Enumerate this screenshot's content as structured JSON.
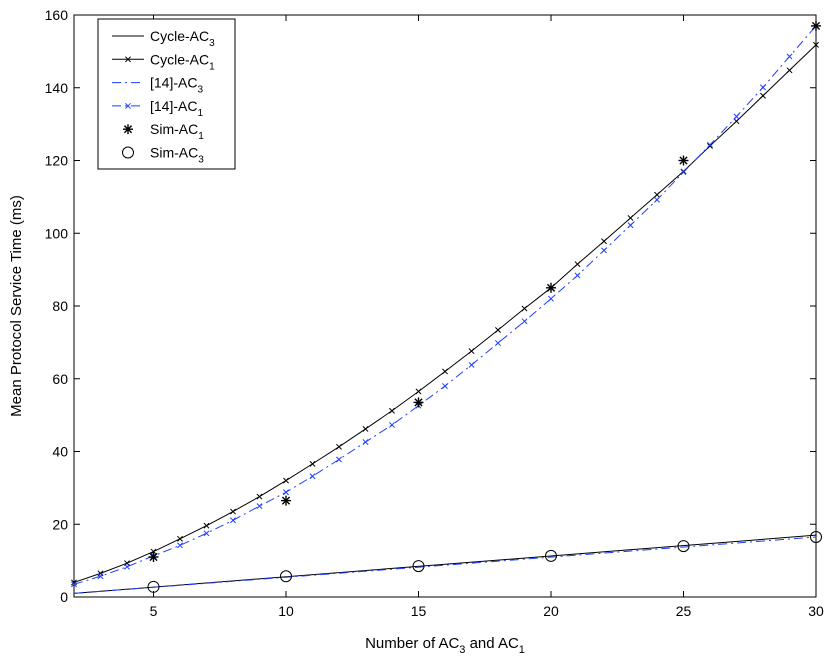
{
  "chart_data": {
    "type": "line",
    "xlabel": {
      "main": "Number of AC",
      "sub1": "3",
      "mid": " and AC",
      "sub2": "1"
    },
    "ylabel": "Mean Protocol Service Time (ms)",
    "xlim": [
      2,
      30
    ],
    "ylim": [
      0,
      160
    ],
    "xticks": [
      5,
      10,
      15,
      20,
      25,
      30
    ],
    "yticks": [
      0,
      20,
      40,
      60,
      80,
      100,
      120,
      140,
      160
    ],
    "grid": false,
    "legend_position": "top-left",
    "series": [
      {
        "name": "Cycle-AC",
        "sub": "3",
        "style": "solid",
        "color": "#000000",
        "marker": "none",
        "x": [
          2,
          30
        ],
        "values": [
          1.0,
          17.0
        ]
      },
      {
        "name": "Cycle-AC",
        "sub": "1",
        "style": "solid",
        "color": "#000000",
        "marker": "x",
        "x": [
          2,
          3,
          4,
          5,
          6,
          7,
          8,
          9,
          10,
          11,
          12,
          13,
          14,
          15,
          16,
          17,
          18,
          19,
          20,
          21,
          22,
          23,
          24,
          25,
          26,
          27,
          28,
          29,
          30
        ],
        "values": [
          4,
          6.5,
          9.3,
          12.5,
          16,
          19.6,
          23.5,
          27.6,
          32,
          36.6,
          41.3,
          46.2,
          51.2,
          56.5,
          62,
          67.6,
          73.4,
          79.3,
          85,
          91.5,
          97.8,
          104.2,
          110.6,
          117,
          124,
          130.8,
          137.8,
          144.8,
          151.8
        ]
      },
      {
        "name": "[14]-AC",
        "sub": "3",
        "style": "dashdot",
        "color": "#1f3fff",
        "marker": "none",
        "x": [
          2,
          30
        ],
        "values": [
          1.0,
          16.5
        ]
      },
      {
        "name": "[14]-AC",
        "sub": "1",
        "style": "dashdot",
        "color": "#1f3fff",
        "marker": "x",
        "x": [
          2,
          3,
          4,
          5,
          6,
          7,
          8,
          9,
          10,
          11,
          12,
          13,
          14,
          15,
          16,
          17,
          18,
          19,
          20,
          21,
          22,
          23,
          24,
          25,
          26,
          27,
          28,
          29,
          30
        ],
        "values": [
          3.5,
          5.7,
          8.3,
          11.3,
          14.2,
          17.5,
          21.1,
          25,
          28.8,
          33.2,
          37.8,
          42.6,
          47.3,
          52.6,
          58,
          63.8,
          69.8,
          75.8,
          82,
          88.4,
          95.3,
          102.2,
          109.2,
          116.8,
          124.3,
          132.1,
          140.1,
          148.6,
          157
        ]
      },
      {
        "name": "Sim-AC",
        "sub": "1",
        "style": "none",
        "color": "#000000",
        "marker": "asterisk",
        "x": [
          5,
          10,
          15,
          20,
          25,
          30
        ],
        "values": [
          11,
          26.5,
          53.5,
          85,
          120,
          157
        ]
      },
      {
        "name": "Sim-AC",
        "sub": "3",
        "style": "none",
        "color": "#000000",
        "marker": "circle",
        "x": [
          5,
          10,
          15,
          20,
          25,
          30
        ],
        "values": [
          2.8,
          5.7,
          8.5,
          11.3,
          14,
          16.5
        ]
      }
    ]
  }
}
